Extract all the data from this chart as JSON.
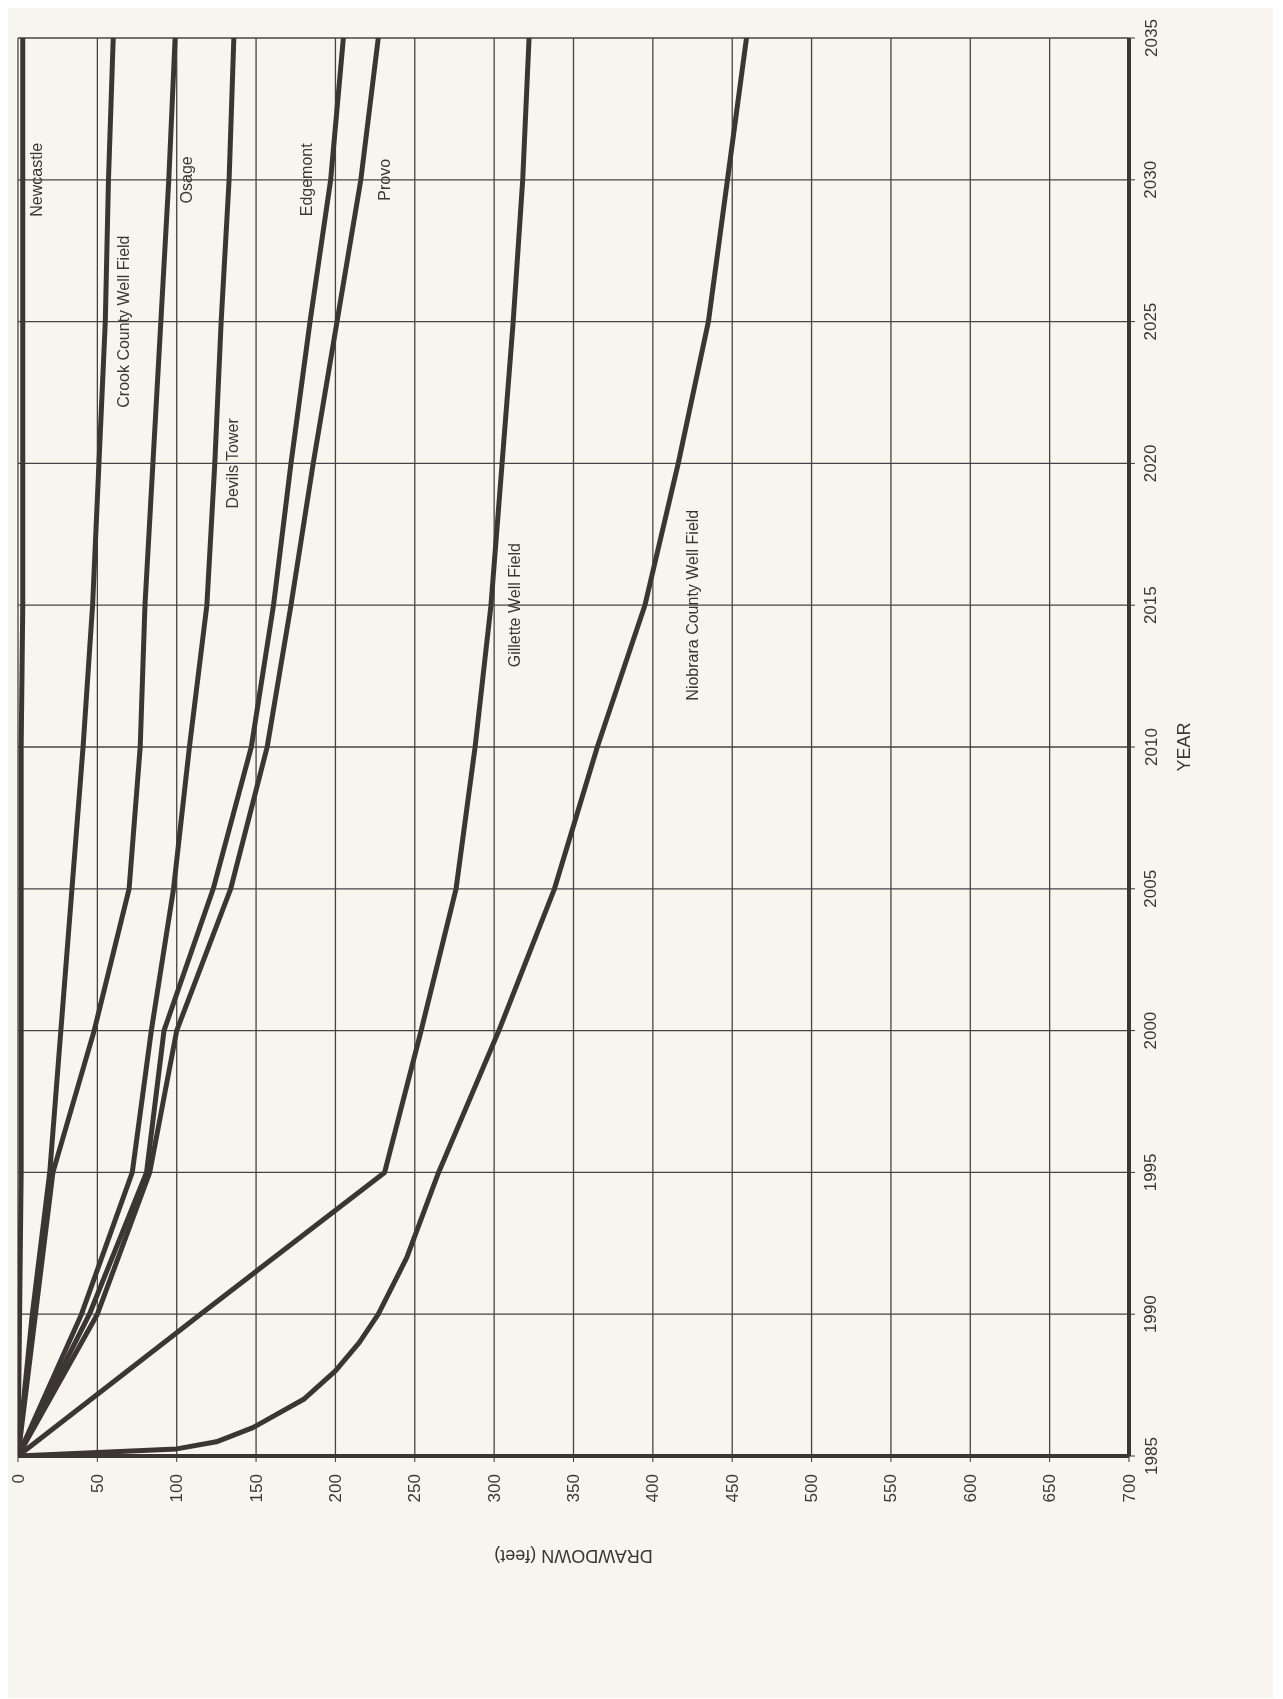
{
  "chart_data": {
    "type": "line",
    "orientation": "horizontal",
    "xlabel": "DRAWDOWN (feet)",
    "ylabel": "YEAR",
    "x": [
      1985,
      1990,
      1995,
      2000,
      2005,
      2010,
      2015,
      2020,
      2025,
      2030,
      2035
    ],
    "series": [
      {
        "name": "Newcastle",
        "color": "#3b3634",
        "values": [
          0,
          1,
          2,
          2,
          2,
          2,
          3,
          3,
          3,
          3,
          3
        ]
      },
      {
        "name": "Crook County Well Field",
        "color": "#3b3634",
        "values": [
          0,
          9,
          20,
          27,
          34,
          41,
          47,
          51,
          55,
          57,
          60
        ]
      },
      {
        "name": "Osage",
        "color": "#3b3634",
        "values": [
          0,
          11,
          22,
          48,
          70,
          77,
          80,
          85,
          90,
          95,
          99
        ]
      },
      {
        "name": "Devils Tower",
        "color": "#3b3634",
        "values": [
          0,
          40,
          72,
          84,
          98,
          108,
          119,
          124,
          128,
          133,
          136
        ]
      },
      {
        "name": "Edgemont",
        "color": "#3b3634",
        "values": [
          0,
          45,
          81,
          92,
          123,
          147,
          161,
          172,
          184,
          197,
          205
        ]
      },
      {
        "name": "Provo",
        "color": "#3b3634",
        "values": [
          0,
          50,
          83,
          100,
          134,
          157,
          172,
          186,
          201,
          216,
          227
        ]
      },
      {
        "name": "Gillette Well Field",
        "color": "#3b3634",
        "values": [
          0,
          115,
          231,
          254,
          276,
          288,
          298,
          305,
          312,
          318,
          322
        ]
      },
      {
        "name": "Niobrara County Well Field",
        "color": "#3b3634",
        "x": [
          1985,
          1985.25,
          1985.5,
          1986,
          1987,
          1988,
          1989,
          1990,
          1992,
          1995,
          2000,
          2005,
          2010,
          2015,
          2020,
          2025,
          2030,
          2035
        ],
        "values": [
          0,
          100,
          125,
          148,
          180,
          200,
          215,
          227,
          245,
          265,
          303,
          338,
          365,
          395,
          416,
          435,
          447,
          459
        ]
      }
    ],
    "ylim": [
      1985,
      2035
    ],
    "yticks": [
      1985,
      1990,
      1995,
      2000,
      2005,
      2010,
      2015,
      2020,
      2025,
      2030,
      2035
    ],
    "xlim": [
      0,
      700
    ],
    "xticks": [
      0,
      50,
      100,
      150,
      200,
      250,
      300,
      350,
      400,
      450,
      500,
      550,
      600,
      650,
      700
    ],
    "grid": true,
    "marker": "none",
    "line_style": "solid"
  }
}
